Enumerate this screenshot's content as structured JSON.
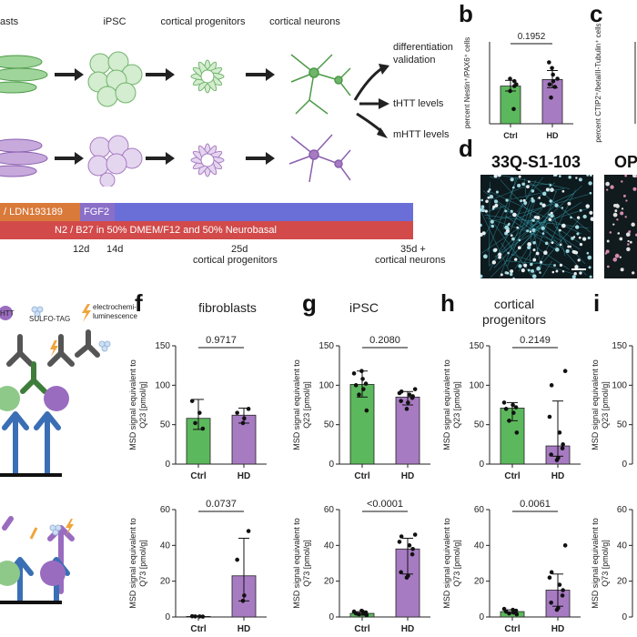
{
  "panel_letters": {
    "b": "b",
    "c": "c",
    "d": "d",
    "f": "f",
    "g": "g",
    "h": "h",
    "i": "i"
  },
  "diagram": {
    "stages": [
      "asts",
      "iPSC",
      "cortical progenitors",
      "cortical neurons"
    ],
    "outputs": [
      "differentiation validation",
      "tHTT levels",
      "mHTT levels"
    ],
    "colors": {
      "ctrl_green": "#5cb85c",
      "hd_purple": "#a77bc2",
      "orange": "#d97a3a",
      "purple_bar": "#8a6fc9",
      "blue_bar": "#6a6fd8",
      "red_bar": "#d24a4a"
    }
  },
  "timeline": {
    "bar1_label": "/ LDN193189",
    "bar2_label": "FGF2",
    "bar4_label": "N2 / B27 in 50% DMEM/F12 and 50% Neurobasal",
    "tick_12": "12d",
    "tick_14": "14d",
    "tick_25": "25d",
    "tick_25_sub": "cortical progenitors",
    "tick_35": "35d +",
    "tick_35_sub": "cortical neurons"
  },
  "msd_legend": {
    "htt": "HTT",
    "sulfo": "SULFO-TAG",
    "electro": "electrochemi- luminescence"
  },
  "micro": {
    "title1": "33Q-S1-103",
    "title2": "OP"
  },
  "chart_data": [
    {
      "id": "b",
      "type": "bar",
      "title": "",
      "ylabel": "percent Nestin⁺/PAX6⁺ cells",
      "categories": [
        "Ctrl",
        "HD"
      ],
      "values": [
        46,
        54
      ],
      "error": [
        [
          40,
          53
        ],
        [
          44,
          65
        ]
      ],
      "points": [
        [
          18,
          40,
          46,
          48,
          52,
          55
        ],
        [
          32,
          45,
          48,
          52,
          55,
          60,
          68,
          75
        ]
      ],
      "ylim": [
        0,
        100
      ],
      "pvalue": "0.1952"
    },
    {
      "id": "c",
      "type": "bar",
      "ylabel": "percent CTIP2⁺/betaIII-Tubulin⁺ cells",
      "categories": [],
      "values": []
    },
    {
      "id": "f1",
      "type": "bar",
      "title": "fibroblasts",
      "ylabel": "MSD signal equivalent to Q23 [pmol/g]",
      "categories": [
        "Ctrl",
        "HD"
      ],
      "values": [
        58,
        62
      ],
      "error": [
        [
          44,
          82
        ],
        [
          52,
          71
        ]
      ],
      "points": [
        [
          45,
          52,
          65,
          80
        ],
        [
          52,
          58,
          65,
          70
        ]
      ],
      "ylim": [
        0,
        150
      ],
      "yticks": [
        0,
        50,
        100,
        150
      ],
      "pvalue": "0.9717"
    },
    {
      "id": "f2",
      "type": "bar",
      "ylabel": "MSD signal equivalent to Q73 [pmol/g]",
      "categories": [
        "Ctrl",
        "HD"
      ],
      "values": [
        0.3,
        23
      ],
      "error": [
        [
          0,
          0.6
        ],
        [
          9,
          44
        ]
      ],
      "points": [
        [
          0.2,
          0.3,
          0.3,
          0.4
        ],
        [
          9,
          12,
          32,
          48
        ]
      ],
      "ylim": [
        0,
        60
      ],
      "yticks": [
        0,
        20,
        40,
        60
      ],
      "pvalue": "0.0737"
    },
    {
      "id": "g1",
      "type": "bar",
      "title": "iPSC",
      "ylabel": "MSD signal equivalent to Q23 [pmol/g]",
      "categories": [
        "Ctrl",
        "HD"
      ],
      "values": [
        101,
        85
      ],
      "error": [
        [
          85,
          118
        ],
        [
          75,
          92
        ]
      ],
      "points": [
        [
          68,
          88,
          95,
          100,
          102,
          108,
          115,
          118
        ],
        [
          70,
          78,
          80,
          84,
          86,
          88,
          90,
          92,
          95
        ]
      ],
      "ylim": [
        0,
        150
      ],
      "yticks": [
        0,
        50,
        100,
        150
      ],
      "pvalue": "0.2080"
    },
    {
      "id": "g2",
      "type": "bar",
      "ylabel": "MSD signal equivalent to Q73 [pmol/g]",
      "categories": [
        "Ctrl",
        "HD"
      ],
      "values": [
        2,
        38
      ],
      "error": [
        [
          1,
          3
        ],
        [
          24,
          44
        ]
      ],
      "points": [
        [
          1,
          1.5,
          2,
          2,
          2.5,
          3,
          3,
          3.5
        ],
        [
          22,
          23,
          25,
          35,
          38,
          40,
          42,
          45,
          46
        ]
      ],
      "ylim": [
        0,
        60
      ],
      "yticks": [
        0,
        20,
        40,
        60
      ],
      "pvalue": "<0.0001"
    },
    {
      "id": "h1",
      "type": "bar",
      "title": "cortical progenitors",
      "ylabel": "MSD signal equivalent to Q23 [pmol/g]",
      "categories": [
        "Ctrl",
        "HD"
      ],
      "values": [
        71,
        23
      ],
      "error": [
        [
          55,
          78
        ],
        [
          10,
          80
        ]
      ],
      "points": [
        [
          40,
          55,
          65,
          70,
          72,
          75,
          78
        ],
        [
          5,
          8,
          12,
          20,
          25,
          40,
          60,
          100,
          118
        ]
      ],
      "ylim": [
        0,
        150
      ],
      "yticks": [
        0,
        50,
        100,
        150
      ],
      "pvalue": "0.2149"
    },
    {
      "id": "h2",
      "type": "bar",
      "ylabel": "MSD signal equivalent to Q73 [pmol/g]",
      "categories": [
        "Ctrl",
        "HD"
      ],
      "values": [
        3,
        15
      ],
      "error": [
        [
          2,
          4
        ],
        [
          6,
          24
        ]
      ],
      "points": [
        [
          1.5,
          2,
          2.5,
          3,
          3.5,
          4,
          4.5
        ],
        [
          4,
          5,
          8,
          12,
          15,
          18,
          22,
          25,
          40
        ]
      ],
      "ylim": [
        0,
        60
      ],
      "yticks": [
        0,
        20,
        40,
        60
      ],
      "pvalue": "0.0061"
    },
    {
      "id": "i1",
      "type": "bar",
      "ylabel": "MSD signal equivalent to Q23 [pmol/g]",
      "categories": [],
      "values": [],
      "ylim": [
        0,
        150
      ],
      "yticks": [
        0,
        50,
        100,
        150
      ]
    },
    {
      "id": "i2",
      "type": "bar",
      "ylabel": "MSD signal equivalent to Q73 [pmol/g]",
      "categories": [],
      "values": [],
      "ylim": [
        0,
        60
      ],
      "yticks": [
        0,
        20,
        40,
        60
      ]
    }
  ]
}
